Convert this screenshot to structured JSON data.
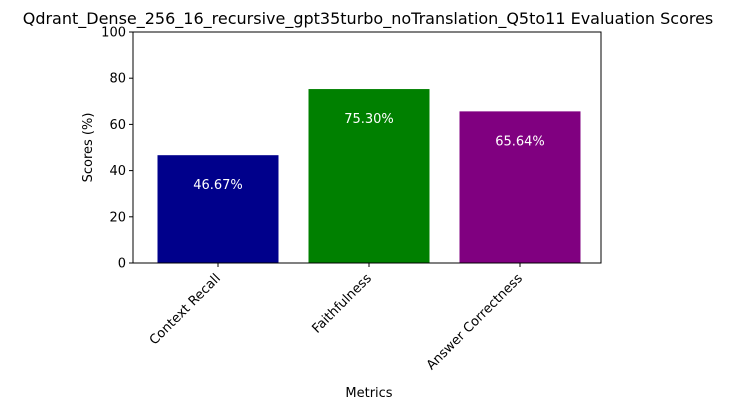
{
  "chart_data": {
    "type": "bar",
    "title": "Qdrant_Dense_256_16_recursive_gpt35turbo_noTranslation_Q5to11 Evaluation Scores",
    "xlabel": "Metrics",
    "ylabel": "Scores (%)",
    "ylim": [
      0,
      100
    ],
    "yticks": [
      0,
      20,
      40,
      60,
      80,
      100
    ],
    "categories": [
      "Context Recall",
      "Faithfulness",
      "Answer Correctness"
    ],
    "values": [
      46.67,
      75.3,
      65.64
    ],
    "value_labels": [
      "46.67%",
      "75.30%",
      "65.64%"
    ],
    "colors": [
      "#00008b",
      "#008000",
      "#800080"
    ],
    "label_color": "#ffffff",
    "grid": false
  }
}
